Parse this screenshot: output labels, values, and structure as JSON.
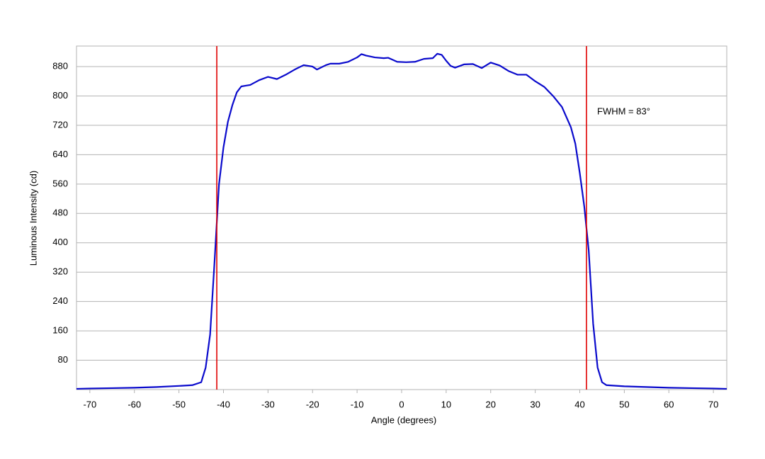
{
  "chart_data": {
    "type": "line",
    "x_label": "Angle (degrees)",
    "y_label": "Luminous Intensity (cd)",
    "annotation": "FWHM = 83°",
    "xlim": [
      -73,
      73
    ],
    "ylim": [
      0,
      936
    ],
    "xticks": [
      -70,
      -60,
      -50,
      -40,
      -30,
      -20,
      -10,
      0,
      10,
      20,
      30,
      40,
      50,
      60,
      70
    ],
    "yticks": [
      80,
      160,
      240,
      320,
      400,
      480,
      560,
      640,
      720,
      800,
      880
    ],
    "grid": true,
    "vlines": [
      -41.5,
      41.5
    ],
    "vline_color": "#e00000",
    "x": [
      -73,
      -70,
      -65,
      -60,
      -55,
      -50,
      -47,
      -45,
      -44,
      -43,
      -42,
      -41,
      -40,
      -39,
      -38,
      -37,
      -36,
      -35,
      -34,
      -32,
      -30,
      -28,
      -26,
      -24,
      -22,
      -20,
      -19,
      -17,
      -16,
      -14,
      -12,
      -10,
      -9,
      -8,
      -6,
      -4,
      -3,
      -1,
      1,
      3,
      5,
      7,
      8,
      9,
      10,
      11,
      12,
      14,
      16,
      18,
      20,
      22,
      24,
      26,
      28,
      30,
      32,
      34,
      36,
      38,
      39,
      40,
      41,
      42,
      43,
      44,
      45,
      46,
      50,
      55,
      60,
      65,
      70,
      73
    ],
    "series": [
      {
        "name": "Luminous Intensity",
        "color": "#0a0acc",
        "values": [
          2,
          3,
          4,
          5,
          7,
          10,
          12,
          20,
          60,
          150,
          350,
          560,
          660,
          730,
          775,
          810,
          826,
          828,
          830,
          843,
          852,
          846,
          858,
          872,
          884,
          880,
          872,
          884,
          888,
          888,
          893,
          905,
          914,
          910,
          905,
          903,
          904,
          893,
          892,
          893,
          901,
          903,
          915,
          912,
          896,
          882,
          877,
          886,
          887,
          876,
          891,
          883,
          868,
          858,
          858,
          840,
          825,
          800,
          770,
          715,
          670,
          590,
          500,
          380,
          180,
          60,
          20,
          12,
          9,
          7,
          5,
          4,
          3,
          2
        ]
      }
    ]
  }
}
